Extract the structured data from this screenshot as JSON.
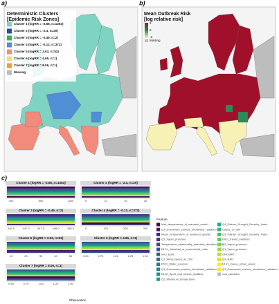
{
  "panel_a": {
    "label": "a)",
    "title": [
      "Deterministic Clusters",
      "[Epidemic Risk Zones]"
    ],
    "legend": [
      "Cluster 1 (logRR = -3.68, n=1363)",
      "Cluster 2 (logRR = -2.4, n=20)",
      "Cluster 3 (logRR = -0.49, n=2)",
      "Cluster 4 (logRR = -0.12, n=372)",
      "Cluster 5 (logRR = 3.63, n=52)",
      "Cluster 6 (logRR = 4.65, n=1)",
      "Cluster 7 (logRR = 8.06, n=1)",
      "Missing"
    ]
  },
  "panel_b": {
    "label": "b)",
    "title": [
      "Mean Outbreak Risk",
      "[log relative risk]"
    ],
    "scale": [
      "-2",
      "0",
      "2"
    ],
    "missing": "Missing"
  },
  "panel_c": {
    "label": "c)",
    "plots": [
      {
        "title": "Cluster 1 (logRR = -3.68, n=1363)",
        "xticks": [
          "400",
          "800",
          "1200"
        ]
      },
      {
        "title": "Cluster 2 (logRR = -2.4, n=20)",
        "xticks": [
          "5",
          "10",
          "15",
          "20"
        ]
      },
      {
        "title": "Cluster 3 (logRR = -0.49, n=2)",
        "xticks": [
          "446.5",
          "447.0",
          "447.5",
          "448.0",
          "448.5"
        ]
      },
      {
        "title": "Cluster 4 (logRR = -0.12, n=372)",
        "xticks": [
          "0",
          "100",
          "200",
          "300"
        ]
      },
      {
        "title": "Cluster 5 (logRR = 3.63, n=52)",
        "xticks": [
          "10",
          "20",
          "30",
          "40",
          "50"
        ]
      },
      {
        "title": "Cluster 6 (logRR = 4.65, n=1)",
        "xticks": [
          "0.50",
          "0.75",
          "1.00",
          "1.25",
          "1.50"
        ]
      },
      {
        "title": "Cluster 7 (logRR = 8.06, n=1)",
        "xticks": [
          "0.50",
          "0.75",
          "1.00",
          "1.25",
          "1.50"
        ]
      }
    ],
    "x_label": "Observation",
    "legend_title": "Feature",
    "features": [
      "Max_temperature_of_warmest_month",
      "Q3_Downward_surface_shortwave_radiation",
      "Mean_temperature_of_warmest_quarter",
      "Q3_Vapor_pressure",
      "Temperature_seasonality_standard_deviation_100",
      "E121_Industrial_or_commercial_units",
      "MIO_EUR",
      "Q1_Wind_speed_at_10m",
      "E511_Water_courses",
      "Q4_Downward_surface_shortwave_radiation",
      "E142_Sport_and_leisure_facilities",
      "Q2_Maximum_temperature",
      "Q4_Palmer_Drought_Severity_Index",
      "Cases_LY_Bin",
      "Q3_Palmer_Drought_Severity_Index",
      "E411_Inland_marshes",
      "Q2_Vapor_pressure",
      "Q1_Vapor_pressure",
      "GROWRT",
      "Q3_NAO",
      "E141_Green_urban_areas",
      "Q1_Downward_surface_shortwave_radiation",
      "real_variables"
    ]
  }
}
